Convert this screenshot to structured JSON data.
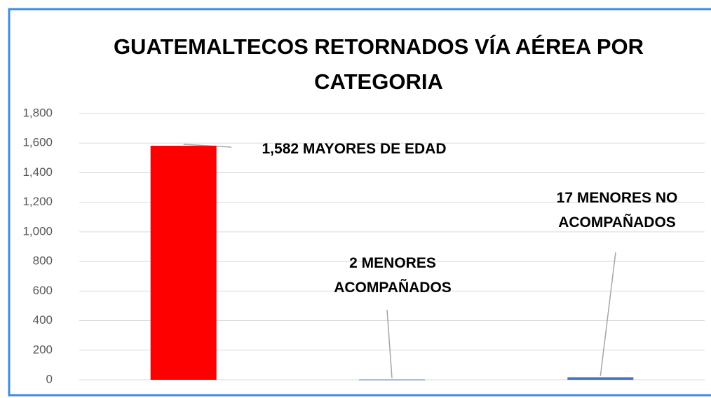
{
  "chart_data": {
    "type": "bar",
    "title": "GUATEMALTECOS RETORNADOS VÍA AÉREA POR CATEGORIA",
    "categories": [
      null,
      null,
      null
    ],
    "values": [
      1582,
      2,
      17
    ],
    "value_labels": [
      "1,582 MAYORES DE EDAD",
      "2 MENORES ACOMPAÑADOS",
      "17 MENORES NO ACOMPAÑADOS"
    ],
    "colors": [
      "#ff0000",
      "#4472c4",
      "#4472c4"
    ],
    "ylim": [
      0,
      1800
    ],
    "yticks": [
      0,
      200,
      400,
      600,
      800,
      {
        "value": 1000,
        "label": "1,000"
      },
      {
        "value": 1200,
        "label": "1,200"
      },
      {
        "value": 1400,
        "label": "1,400"
      },
      {
        "value": 1600,
        "label": "1,600"
      },
      {
        "value": 1800,
        "label": "1,800"
      }
    ],
    "grid": true
  }
}
